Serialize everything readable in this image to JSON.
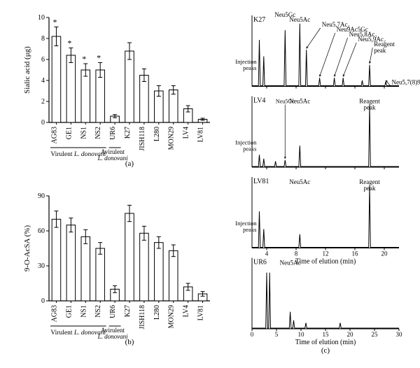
{
  "figure": {
    "panel_a": {
      "type": "bar",
      "letter": "(a)",
      "ylabel": "Sialic acid (μg)",
      "ylim": [
        0,
        10
      ],
      "ytick_step": 2,
      "yticks": [
        0,
        2,
        4,
        6,
        8,
        10
      ],
      "bar_color": "#ffffff",
      "bar_border_color": "#000000",
      "bar_width": 0.6,
      "categories": [
        "AG83",
        "GE1",
        "NS1",
        "NS2",
        "UR6",
        "K27",
        "JISH118",
        "L280",
        "MON29",
        "LV4",
        "LV81"
      ],
      "values": [
        8.2,
        6.4,
        5.0,
        5.0,
        0.6,
        6.8,
        4.5,
        3.0,
        3.1,
        1.3,
        0.3
      ],
      "err": [
        0.9,
        0.7,
        0.6,
        0.7,
        0.15,
        0.8,
        0.6,
        0.5,
        0.4,
        0.3,
        0.1
      ],
      "stars_idx": [
        0,
        1,
        2,
        3
      ],
      "group_labels": {
        "virulent": {
          "text": "Virulent L. donovani",
          "from": 0,
          "to": 3
        },
        "avirulent": {
          "text": "Avirulent\nL. donovani",
          "from": 4,
          "to": 4
        }
      },
      "axis_color": "#000000",
      "label_fontsize": 11,
      "tick_fontsize": 10
    },
    "panel_b": {
      "type": "bar",
      "letter": "(b)",
      "ylabel": "9-O-AcSA (%)",
      "ylim": [
        0,
        90
      ],
      "ytick_step": 30,
      "yticks": [
        0,
        30,
        60,
        90
      ],
      "bar_color": "#ffffff",
      "bar_border_color": "#000000",
      "bar_width": 0.6,
      "categories": [
        "AG83",
        "GE1",
        "NS1",
        "NS2",
        "UR6",
        "K27",
        "JISH118",
        "L280",
        "MON29",
        "LV4",
        "LV81"
      ],
      "values": [
        70,
        65,
        55,
        45,
        10,
        75,
        58,
        50,
        43,
        12,
        6
      ],
      "err": [
        7,
        6,
        6,
        5,
        3,
        7,
        6,
        5,
        5,
        3,
        2
      ],
      "group_labels": {
        "virulent": {
          "text": "Virulent L. donovani",
          "from": 0,
          "to": 3
        },
        "avirulent": {
          "text": "Avirulent\nL. donovani",
          "from": 4,
          "to": 4
        }
      },
      "axis_color": "#000000",
      "label_fontsize": 11,
      "tick_fontsize": 10
    },
    "panel_c": {
      "type": "chromatogram",
      "letter": "(c)",
      "xlabel_top": "Time of elution (min)",
      "xlabel_bottom": "Time of elution (min)",
      "line_color": "#000000",
      "line_width": 1,
      "background_color": "#ffffff",
      "tick_fontsize": 9,
      "label_fontsize": 10,
      "subpanels": [
        {
          "name": "K27",
          "xmin": 2,
          "xmax": 22,
          "xticks": [
            4,
            8,
            12,
            16,
            20
          ],
          "peaks": [
            {
              "t": 3.0,
              "h": 0.7
            },
            {
              "t": 3.6,
              "h": 0.45
            },
            {
              "t": 6.5,
              "h": 0.85
            },
            {
              "t": 8.5,
              "h": 0.95
            },
            {
              "t": 9.4,
              "h": 0.55
            },
            {
              "t": 11.2,
              "h": 0.12
            },
            {
              "t": 13.2,
              "h": 0.12
            },
            {
              "t": 14.4,
              "h": 0.12
            },
            {
              "t": 17.0,
              "h": 0.08
            },
            {
              "t": 18.0,
              "h": 0.32
            },
            {
              "t": 20.2,
              "h": 0.06
            }
          ],
          "labels": [
            {
              "text": "Neu5Gc",
              "t": 6.5,
              "dy": -2,
              "anchor": "middle"
            },
            {
              "text": "Neu5Ac",
              "t": 8.5,
              "dy": -2,
              "anchor": "middle"
            },
            {
              "text": "Neu5,7Ac₂",
              "t": 11.5,
              "dy": -2,
              "anchor": "start",
              "arrow_to": 9.4
            },
            {
              "text": "Neu9Ac5Gc",
              "t": 13.5,
              "dy": -2,
              "anchor": "start",
              "arrow_to": 11.2
            },
            {
              "text": "Neu5,8Ac₂",
              "t": 15.2,
              "dy": -2,
              "anchor": "start",
              "arrow_to": 13.2
            },
            {
              "text": "Neu5,9Ac₂",
              "t": 16.4,
              "dy": -2,
              "anchor": "start",
              "arrow_to": 14.4
            },
            {
              "text": "Reagent\npeak",
              "t": 18.6,
              "dy": -2,
              "anchor": "start",
              "arrow_to": 18.0
            },
            {
              "text": "Neu5,7(8)9Ac₂",
              "t": 21.0,
              "dy": 0,
              "anchor": "start",
              "inline": true,
              "arrow_to": 20.2
            }
          ],
          "injection_label": {
            "text": "Injection\npeaks",
            "t": 3.0
          }
        },
        {
          "name": "LV4",
          "xmin": 2,
          "xmax": 22,
          "xticks": [
            4,
            8,
            12,
            16,
            20
          ],
          "peaks": [
            {
              "t": 3.0,
              "h": 0.18
            },
            {
              "t": 3.6,
              "h": 0.12
            },
            {
              "t": 5.2,
              "h": 0.08
            },
            {
              "t": 6.5,
              "h": 0.1
            },
            {
              "t": 8.5,
              "h": 0.32
            },
            {
              "t": 18.0,
              "h": 0.95
            }
          ],
          "labels": [
            {
              "text": "Neu5Gc",
              "t": 6.5,
              "dy": -2,
              "anchor": "middle",
              "arrow_to": 6.5,
              "small": true
            },
            {
              "text": "Neu5Ac",
              "t": 8.5,
              "dy": -2,
              "anchor": "middle"
            },
            {
              "text": "Reagent\npeak",
              "t": 18.0,
              "dy": -2,
              "anchor": "middle"
            }
          ],
          "injection_label": {
            "text": "Injection\npeaks",
            "t": 3.0
          }
        },
        {
          "name": "LV81",
          "xmin": 2,
          "xmax": 22,
          "xticks": [
            4,
            8,
            12,
            16,
            20
          ],
          "peaks": [
            {
              "t": 3.0,
              "h": 0.55
            },
            {
              "t": 3.6,
              "h": 0.28
            },
            {
              "t": 8.5,
              "h": 0.2
            },
            {
              "t": 18.0,
              "h": 0.95
            }
          ],
          "labels": [
            {
              "text": "Neu5Ac",
              "t": 8.5,
              "dy": -2,
              "anchor": "middle"
            },
            {
              "text": "Reagent\npeak",
              "t": 18.0,
              "dy": -2,
              "anchor": "middle"
            }
          ],
          "injection_label": {
            "text": "Injection\npeaks",
            "t": 3.0
          }
        },
        {
          "name": "UR6",
          "xmin": 0,
          "xmax": 30,
          "xticks": [
            0,
            5,
            10,
            15,
            20,
            25,
            30
          ],
          "peaks": [
            {
              "t": 3.0,
              "h": 0.85
            },
            {
              "t": 3.6,
              "h": 0.85
            },
            {
              "t": 7.8,
              "h": 0.25
            },
            {
              "t": 8.5,
              "h": 0.12
            },
            {
              "t": 11.0,
              "h": 0.08
            },
            {
              "t": 18.0,
              "h": 0.08
            }
          ],
          "labels": [
            {
              "text": "Neu5Ac",
              "t": 7.8,
              "dy": -2,
              "anchor": "middle"
            }
          ]
        }
      ]
    }
  }
}
